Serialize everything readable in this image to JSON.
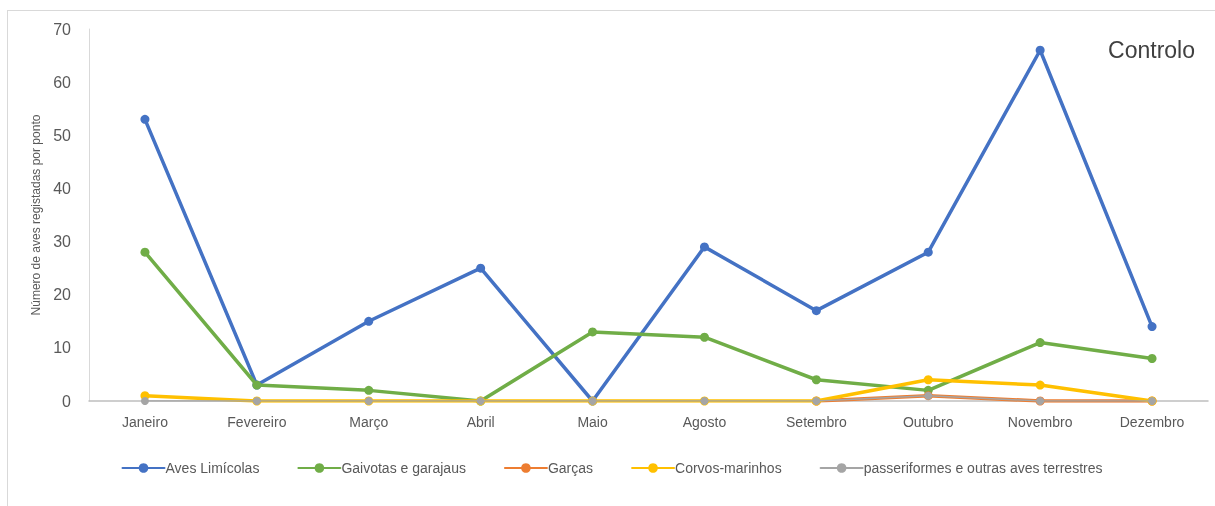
{
  "chart_data": {
    "type": "line",
    "title": "Controlo",
    "ylabel": "Número de aves registadas por ponto",
    "categories": [
      "Janeiro",
      "Fevereiro",
      "Março",
      "Abril",
      "Maio",
      "Agosto",
      "Setembro",
      "Outubro",
      "Novembro",
      "Dezembro"
    ],
    "series": [
      {
        "name": "Aves Limícolas",
        "color": "#4472c4",
        "values": [
          53,
          3,
          15,
          25,
          0,
          29,
          17,
          28,
          66,
          14
        ]
      },
      {
        "name": "Gaivotas e garajaus",
        "color": "#70ad47",
        "values": [
          28,
          3,
          2,
          0,
          13,
          12,
          4,
          2,
          11,
          8
        ]
      },
      {
        "name": "Garças",
        "color": "#ed7d31",
        "values": [
          null,
          null,
          null,
          null,
          null,
          null,
          0,
          1,
          0,
          0
        ]
      },
      {
        "name": "Corvos-marinhos",
        "color": "#ffc000",
        "values": [
          1,
          0,
          0,
          0,
          0,
          0,
          0,
          4,
          3,
          0
        ]
      },
      {
        "name": "passeriformes e outras aves terrestres",
        "color": "#a5a5a5",
        "values": [
          0,
          0,
          0,
          0,
          0,
          0,
          0,
          1,
          0,
          0
        ]
      }
    ],
    "ylim": [
      0,
      70
    ],
    "yticks": [
      0,
      10,
      20,
      30,
      40,
      50,
      60,
      70
    ],
    "grid": false,
    "legend": "bottom",
    "marker": "circle",
    "line_style": "solid"
  }
}
